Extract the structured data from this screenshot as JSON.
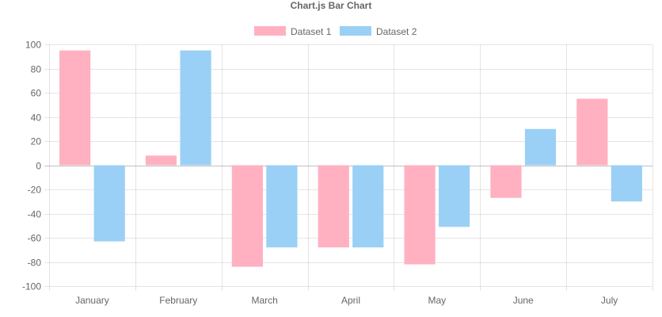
{
  "chart_data": {
    "type": "bar",
    "title": "Chart.js Bar Chart",
    "categories": [
      "January",
      "February",
      "March",
      "April",
      "May",
      "June",
      "July"
    ],
    "series": [
      {
        "name": "Dataset 1",
        "values": [
          95,
          8,
          -84,
          -68,
          -82,
          -27,
          55
        ],
        "color": "#ffb1c1",
        "border": "#ff6384"
      },
      {
        "name": "Dataset 2",
        "values": [
          -63,
          95,
          -68,
          -68,
          -51,
          30,
          -30
        ],
        "color": "#9ad0f5",
        "border": "#36a2eb"
      }
    ],
    "ylim": [
      -100,
      100
    ],
    "y_ticks": [
      "100",
      "80",
      "60",
      "40",
      "20",
      "0",
      "-20",
      "-40",
      "-60",
      "-80",
      "-100"
    ],
    "grid": true,
    "legend_position": "top"
  }
}
